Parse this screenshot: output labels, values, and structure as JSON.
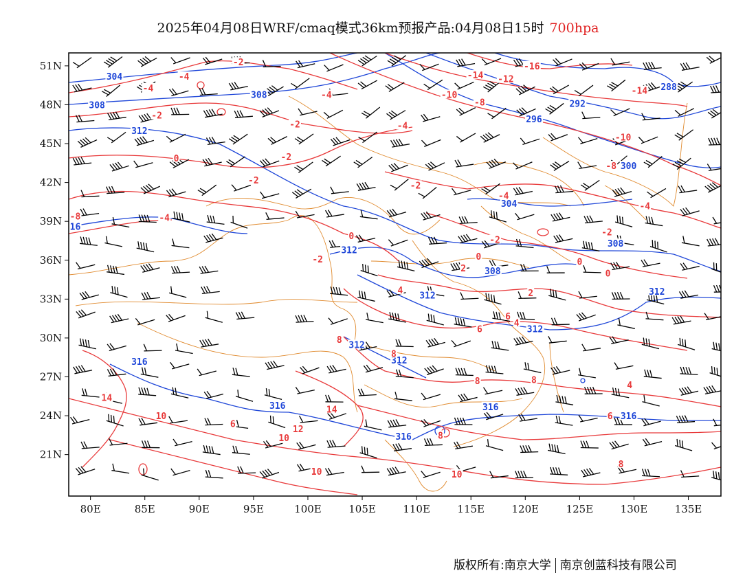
{
  "header": {
    "title": "2025年04月08日WRF/cmaq模式36km预报产品:04月08日15时",
    "level": "700hpa"
  },
  "axes": {
    "x_ticks": [
      "80E",
      "85E",
      "90E",
      "95E",
      "100E",
      "105E",
      "110E",
      "115E",
      "120E",
      "125E",
      "130E",
      "135E"
    ],
    "x_values": [
      80,
      85,
      90,
      95,
      100,
      105,
      110,
      115,
      120,
      125,
      130,
      135
    ],
    "y_ticks": [
      "51N",
      "48N",
      "45N",
      "42N",
      "39N",
      "36N",
      "33N",
      "30N",
      "27N",
      "24N",
      "21N"
    ],
    "y_values": [
      51,
      48,
      45,
      42,
      39,
      36,
      33,
      30,
      27,
      24,
      21
    ],
    "lon_range": [
      78,
      138
    ],
    "lat_range": [
      17.8,
      52
    ]
  },
  "colors": {
    "temperature": "#e8393a",
    "height": "#1e46d8",
    "boundary": "#e08a2e",
    "wind": "#000000"
  },
  "height_labels": [
    {
      "text": "304",
      "lon": 82.2,
      "lat": 50.2
    },
    {
      "text": "308",
      "lon": 80.6,
      "lat": 48.0
    },
    {
      "text": "308",
      "lon": 95.5,
      "lat": 48.8
    },
    {
      "text": "312",
      "lon": 84.5,
      "lat": 46.0
    },
    {
      "text": "288",
      "lon": 133.2,
      "lat": 49.4
    },
    {
      "text": "292",
      "lon": 124.8,
      "lat": 48.1
    },
    {
      "text": "296",
      "lon": 120.8,
      "lat": 46.9
    },
    {
      "text": "300",
      "lon": 129.5,
      "lat": 43.3
    },
    {
      "text": "304",
      "lon": 118.5,
      "lat": 40.4
    },
    {
      "text": "308",
      "lon": 128.3,
      "lat": 37.3
    },
    {
      "text": "308",
      "lon": 117.0,
      "lat": 35.2
    },
    {
      "text": "312",
      "lon": 103.8,
      "lat": 36.8
    },
    {
      "text": "312",
      "lon": 111.0,
      "lat": 33.3
    },
    {
      "text": "312",
      "lon": 132.1,
      "lat": 33.6
    },
    {
      "text": "312",
      "lon": 120.9,
      "lat": 30.7
    },
    {
      "text": "312",
      "lon": 104.5,
      "lat": 29.5
    },
    {
      "text": "312",
      "lon": 108.4,
      "lat": 28.3
    },
    {
      "text": "316",
      "lon": 84.5,
      "lat": 28.2
    },
    {
      "text": "316",
      "lon": 97.2,
      "lat": 24.8
    },
    {
      "text": "316",
      "lon": 108.8,
      "lat": 22.4
    },
    {
      "text": "316",
      "lon": 116.8,
      "lat": 24.7
    },
    {
      "text": "316",
      "lon": 129.5,
      "lat": 24.0
    },
    {
      "text": "16",
      "lon": 78.6,
      "lat": 38.6
    }
  ],
  "temperature_labels": [
    {
      "text": "-2",
      "lon": 93.6,
      "lat": 51.3
    },
    {
      "text": "-4",
      "lon": 88.6,
      "lat": 50.2
    },
    {
      "text": "-4",
      "lon": 85.3,
      "lat": 49.3
    },
    {
      "text": "-2",
      "lon": 86.1,
      "lat": 47.2
    },
    {
      "text": "-4",
      "lon": 101.7,
      "lat": 48.8
    },
    {
      "text": "-2",
      "lon": 98.8,
      "lat": 46.5
    },
    {
      "text": "-2",
      "lon": 98.0,
      "lat": 44.0
    },
    {
      "text": "-4",
      "lon": 108.7,
      "lat": 46.4
    },
    {
      "text": "0",
      "lon": 87.9,
      "lat": 43.9
    },
    {
      "text": "-2",
      "lon": 95.0,
      "lat": 42.2
    },
    {
      "text": "-2",
      "lon": 109.9,
      "lat": 41.8
    },
    {
      "text": "-4",
      "lon": 86.8,
      "lat": 39.3
    },
    {
      "text": "-8",
      "lon": 78.6,
      "lat": 39.4
    },
    {
      "text": "-14",
      "lon": 115.4,
      "lat": 50.3
    },
    {
      "text": "-16",
      "lon": 120.6,
      "lat": 51.0
    },
    {
      "text": "-12",
      "lon": 118.2,
      "lat": 50.0
    },
    {
      "text": "-10",
      "lon": 113.0,
      "lat": 48.8
    },
    {
      "text": "-8",
      "lon": 115.8,
      "lat": 48.2
    },
    {
      "text": "-14",
      "lon": 130.5,
      "lat": 49.1
    },
    {
      "text": "-10",
      "lon": 129.0,
      "lat": 45.5
    },
    {
      "text": "-8",
      "lon": 127.9,
      "lat": 43.3
    },
    {
      "text": "-4",
      "lon": 118.0,
      "lat": 41.0
    },
    {
      "text": "-4",
      "lon": 131.0,
      "lat": 40.2
    },
    {
      "text": "-2",
      "lon": 117.2,
      "lat": 37.6
    },
    {
      "text": "-2",
      "lon": 127.5,
      "lat": 38.2
    },
    {
      "text": "0",
      "lon": 104.0,
      "lat": 37.9
    },
    {
      "text": "0",
      "lon": 115.7,
      "lat": 36.3
    },
    {
      "text": "0",
      "lon": 125.0,
      "lat": 35.9
    },
    {
      "text": "0",
      "lon": 127.6,
      "lat": 35.0
    },
    {
      "text": "-2",
      "lon": 100.9,
      "lat": 36.1
    },
    {
      "text": "2",
      "lon": 114.3,
      "lat": 35.4
    },
    {
      "text": "2",
      "lon": 120.5,
      "lat": 33.5
    },
    {
      "text": "4",
      "lon": 108.5,
      "lat": 33.7
    },
    {
      "text": "6",
      "lon": 118.4,
      "lat": 31.7
    },
    {
      "text": "4",
      "lon": 119.2,
      "lat": 31.2
    },
    {
      "text": "6",
      "lon": 115.8,
      "lat": 30.7
    },
    {
      "text": "8",
      "lon": 102.9,
      "lat": 29.9
    },
    {
      "text": "8",
      "lon": 107.9,
      "lat": 28.8
    },
    {
      "text": "8",
      "lon": 115.6,
      "lat": 26.7
    },
    {
      "text": "8",
      "lon": 120.8,
      "lat": 26.8
    },
    {
      "text": "4",
      "lon": 129.6,
      "lat": 26.4
    },
    {
      "text": "6",
      "lon": 127.8,
      "lat": 24.0
    },
    {
      "text": "14",
      "lon": 81.5,
      "lat": 25.4
    },
    {
      "text": "10",
      "lon": 86.5,
      "lat": 24.0
    },
    {
      "text": "6",
      "lon": 93.1,
      "lat": 23.4
    },
    {
      "text": "14",
      "lon": 102.2,
      "lat": 24.5
    },
    {
      "text": "12",
      "lon": 99.1,
      "lat": 23.0
    },
    {
      "text": "10",
      "lon": 97.8,
      "lat": 22.3
    },
    {
      "text": "10",
      "lon": 100.8,
      "lat": 19.7
    },
    {
      "text": "8",
      "lon": 112.2,
      "lat": 22.5
    },
    {
      "text": "10",
      "lon": 113.7,
      "lat": 19.5
    },
    {
      "text": "8",
      "lon": 128.8,
      "lat": 20.3
    }
  ],
  "footer": {
    "copyright": "版权所有:南京大学",
    "company": "南京创蓝科技有限公司"
  }
}
